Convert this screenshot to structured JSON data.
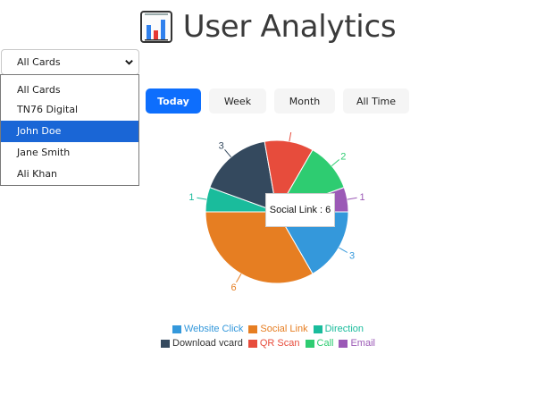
{
  "header": {
    "title": "User Analytics"
  },
  "card_select": {
    "value": "All Cards",
    "options": [
      "All Cards",
      "TN76 Digital",
      "John Doe",
      "Jane Smith",
      "Ali Khan"
    ],
    "highlighted": "John Doe"
  },
  "tabs": [
    {
      "label": "Today",
      "active": true
    },
    {
      "label": "Week",
      "active": false
    },
    {
      "label": "Month",
      "active": false
    },
    {
      "label": "All Time",
      "active": false
    }
  ],
  "tooltip": {
    "text": "Social Link : 6"
  },
  "chart_data": {
    "type": "pie",
    "slices": [
      {
        "label": "Website Click",
        "value": 3,
        "color": "#3498db"
      },
      {
        "label": "Social Link",
        "value": 6,
        "color": "#e67e22"
      },
      {
        "label": "Direction",
        "value": 1,
        "color": "#1abc9c"
      },
      {
        "label": "Download vcard",
        "value": 3,
        "color": "#34495e"
      },
      {
        "label": "QR Scan",
        "value": 2,
        "color": "#e74c3c"
      },
      {
        "label": "Call",
        "value": 2,
        "color": "#2ecc71"
      },
      {
        "label": "Email",
        "value": 1,
        "color": "#9b59b6"
      }
    ],
    "legend": "bottom"
  },
  "icons": {
    "title": "bar-chart-icon",
    "select": "chevron-down-icon"
  }
}
